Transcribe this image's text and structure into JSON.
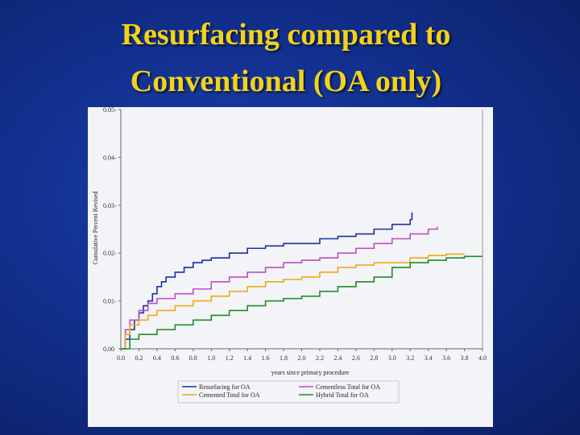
{
  "slide": {
    "title_line1": "Resurfacing compared to",
    "title_line2": "Conventional (OA only)"
  },
  "colors": {
    "Resurfacing for OA": "#1a2fa8",
    "Cementless Total for OA": "#c04ac8",
    "Cemented Total for OA": "#f0a818",
    "Hybrid Total for OA": "#1e8c28"
  },
  "chart_data": {
    "type": "line",
    "step": true,
    "xlabel": "years since primary procedure",
    "ylabel": "Cumulative Percent Revised",
    "xlim": [
      0,
      4.0
    ],
    "ylim": [
      0,
      0.05
    ],
    "xticks": [
      "0.0",
      "0.2",
      "0.4",
      "0.6",
      "0.8",
      "1.0",
      "1.2",
      "1.4",
      "1.6",
      "1.8",
      "2.0",
      "2.2",
      "2.4",
      "2.6",
      "2.8",
      "3.0",
      "3.2",
      "3.4",
      "3.6",
      "3.8",
      "4.0"
    ],
    "yticks": [
      "0.00",
      "0.01",
      "0.02",
      "0.03",
      "0.04",
      "0.05"
    ],
    "legend_position": "bottom",
    "series": [
      {
        "name": "Resurfacing for OA",
        "x": [
          0.0,
          0.05,
          0.1,
          0.15,
          0.2,
          0.25,
          0.3,
          0.35,
          0.4,
          0.45,
          0.5,
          0.6,
          0.7,
          0.8,
          0.9,
          1.0,
          1.2,
          1.4,
          1.6,
          1.8,
          2.0,
          2.2,
          2.4,
          2.6,
          2.8,
          3.0,
          3.2,
          3.22
        ],
        "y": [
          0.0,
          0.002,
          0.004,
          0.006,
          0.0075,
          0.009,
          0.01,
          0.0115,
          0.013,
          0.014,
          0.015,
          0.016,
          0.017,
          0.018,
          0.0185,
          0.019,
          0.02,
          0.021,
          0.0215,
          0.022,
          0.022,
          0.023,
          0.0235,
          0.024,
          0.025,
          0.026,
          0.027,
          0.0285
        ]
      },
      {
        "name": "Cementless Total for OA",
        "x": [
          0.0,
          0.05,
          0.1,
          0.2,
          0.3,
          0.4,
          0.6,
          0.8,
          1.0,
          1.2,
          1.4,
          1.6,
          1.8,
          2.0,
          2.2,
          2.4,
          2.6,
          2.8,
          3.0,
          3.2,
          3.4,
          3.5
        ],
        "y": [
          0.0,
          0.004,
          0.006,
          0.008,
          0.0095,
          0.0105,
          0.0115,
          0.0125,
          0.014,
          0.015,
          0.016,
          0.017,
          0.018,
          0.0185,
          0.019,
          0.02,
          0.021,
          0.022,
          0.023,
          0.024,
          0.025,
          0.0255
        ]
      },
      {
        "name": "Cemented Total for OA",
        "x": [
          0.0,
          0.05,
          0.1,
          0.2,
          0.3,
          0.4,
          0.6,
          0.8,
          1.0,
          1.2,
          1.4,
          1.6,
          1.8,
          2.0,
          2.2,
          2.4,
          2.6,
          2.8,
          3.0,
          3.2,
          3.4,
          3.6,
          3.8
        ],
        "y": [
          0.0,
          0.003,
          0.005,
          0.006,
          0.007,
          0.008,
          0.009,
          0.01,
          0.011,
          0.012,
          0.013,
          0.014,
          0.0145,
          0.015,
          0.016,
          0.017,
          0.0175,
          0.018,
          0.018,
          0.019,
          0.0195,
          0.0198,
          0.0198
        ]
      },
      {
        "name": "Hybrid Total for OA",
        "x": [
          0.0,
          0.1,
          0.2,
          0.4,
          0.6,
          0.8,
          1.0,
          1.2,
          1.4,
          1.6,
          1.8,
          2.0,
          2.2,
          2.4,
          2.6,
          2.8,
          3.0,
          3.2,
          3.4,
          3.6,
          3.8,
          4.0
        ],
        "y": [
          0.0,
          0.002,
          0.003,
          0.004,
          0.005,
          0.006,
          0.007,
          0.008,
          0.009,
          0.01,
          0.0105,
          0.011,
          0.012,
          0.013,
          0.014,
          0.015,
          0.017,
          0.018,
          0.0185,
          0.019,
          0.0193,
          0.0193
        ]
      }
    ]
  }
}
